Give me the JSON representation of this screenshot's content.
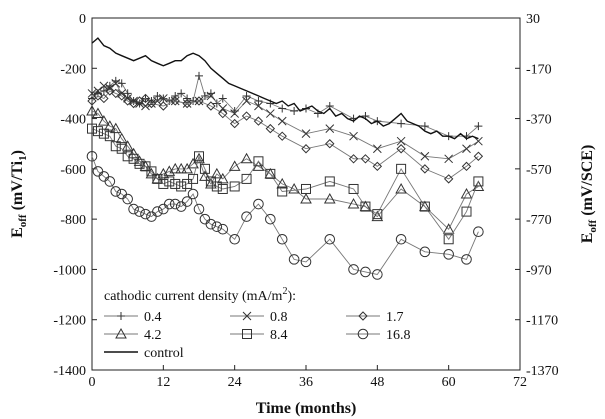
{
  "chart_data": {
    "type": "line",
    "xlabel": "Time (months)",
    "ylabel_left": "E_off (mV/Ti_1)",
    "ylabel_right": "E_off (mV/SCE)",
    "xlim": [
      0,
      72
    ],
    "ylim_left": [
      -1400,
      0
    ],
    "ylim_right": [
      -1370,
      30
    ],
    "x_ticks": [
      "0",
      "12",
      "24",
      "36",
      "48",
      "60",
      "72"
    ],
    "y_ticks_left": [
      "0",
      "-200",
      "-400",
      "-600",
      "-800",
      "-1000",
      "-1200",
      "-1400"
    ],
    "y_ticks_right": [
      "30",
      "-170",
      "-370",
      "-570",
      "-770",
      "-970",
      "-1170",
      "-1370"
    ],
    "legend_title": "cathodic current density (mA/m²):",
    "legend_position": "bottom-left",
    "grid": false,
    "series": [
      {
        "name": "0.4",
        "marker": "plus",
        "points": [
          [
            0,
            -320
          ],
          [
            1,
            -300
          ],
          [
            2,
            -290
          ],
          [
            3,
            -270
          ],
          [
            4,
            -250
          ],
          [
            5,
            -260
          ],
          [
            6,
            -300
          ],
          [
            7,
            -330
          ],
          [
            8,
            -340
          ],
          [
            9,
            -320
          ],
          [
            10,
            -330
          ],
          [
            11,
            -310
          ],
          [
            12,
            -320
          ],
          [
            13,
            -330
          ],
          [
            14,
            -310
          ],
          [
            15,
            -300
          ],
          [
            16,
            -320
          ],
          [
            17,
            -330
          ],
          [
            18,
            -230
          ],
          [
            19,
            -310
          ],
          [
            20,
            -300
          ],
          [
            21,
            -340
          ],
          [
            22,
            -320
          ],
          [
            24,
            -370
          ],
          [
            26,
            -310
          ],
          [
            28,
            -330
          ],
          [
            30,
            -340
          ],
          [
            32,
            -360
          ],
          [
            34,
            -370
          ],
          [
            36,
            -360
          ],
          [
            38,
            -380
          ],
          [
            40,
            -350
          ],
          [
            44,
            -400
          ],
          [
            46,
            -390
          ],
          [
            48,
            -410
          ],
          [
            52,
            -420
          ],
          [
            56,
            -430
          ],
          [
            60,
            -470
          ],
          [
            63,
            -470
          ],
          [
            65,
            -430
          ]
        ]
      },
      {
        "name": "0.8",
        "marker": "x",
        "points": [
          [
            0,
            -300
          ],
          [
            1,
            -290
          ],
          [
            2,
            -270
          ],
          [
            3,
            -280
          ],
          [
            4,
            -260
          ],
          [
            5,
            -300
          ],
          [
            6,
            -320
          ],
          [
            7,
            -330
          ],
          [
            8,
            -340
          ],
          [
            9,
            -350
          ],
          [
            10,
            -340
          ],
          [
            11,
            -330
          ],
          [
            12,
            -320
          ],
          [
            14,
            -330
          ],
          [
            16,
            -340
          ],
          [
            18,
            -330
          ],
          [
            20,
            -310
          ],
          [
            22,
            -360
          ],
          [
            24,
            -380
          ],
          [
            26,
            -330
          ],
          [
            28,
            -350
          ],
          [
            30,
            -380
          ],
          [
            32,
            -410
          ],
          [
            36,
            -460
          ],
          [
            40,
            -440
          ],
          [
            44,
            -470
          ],
          [
            48,
            -520
          ],
          [
            52,
            -490
          ],
          [
            56,
            -550
          ],
          [
            60,
            -560
          ],
          [
            63,
            -520
          ],
          [
            65,
            -490
          ]
        ]
      },
      {
        "name": "1.7",
        "marker": "diamond",
        "points": [
          [
            0,
            -330
          ],
          [
            1,
            -310
          ],
          [
            2,
            -320
          ],
          [
            3,
            -290
          ],
          [
            4,
            -300
          ],
          [
            5,
            -310
          ],
          [
            6,
            -330
          ],
          [
            7,
            -340
          ],
          [
            8,
            -330
          ],
          [
            9,
            -320
          ],
          [
            10,
            -340
          ],
          [
            12,
            -350
          ],
          [
            14,
            -330
          ],
          [
            16,
            -340
          ],
          [
            18,
            -330
          ],
          [
            20,
            -350
          ],
          [
            22,
            -380
          ],
          [
            24,
            -420
          ],
          [
            26,
            -390
          ],
          [
            28,
            -410
          ],
          [
            30,
            -440
          ],
          [
            32,
            -470
          ],
          [
            36,
            -520
          ],
          [
            40,
            -500
          ],
          [
            44,
            -560
          ],
          [
            46,
            -560
          ],
          [
            48,
            -590
          ],
          [
            52,
            -520
          ],
          [
            56,
            -600
          ],
          [
            60,
            -640
          ],
          [
            63,
            -590
          ],
          [
            65,
            -550
          ]
        ]
      },
      {
        "name": "4.2",
        "marker": "triangle",
        "points": [
          [
            0,
            -370
          ],
          [
            1,
            -380
          ],
          [
            2,
            -410
          ],
          [
            3,
            -430
          ],
          [
            4,
            -440
          ],
          [
            5,
            -480
          ],
          [
            6,
            -510
          ],
          [
            7,
            -540
          ],
          [
            8,
            -570
          ],
          [
            9,
            -590
          ],
          [
            10,
            -620
          ],
          [
            11,
            -640
          ],
          [
            12,
            -620
          ],
          [
            13,
            -610
          ],
          [
            14,
            -600
          ],
          [
            15,
            -600
          ],
          [
            16,
            -600
          ],
          [
            17,
            -580
          ],
          [
            18,
            -560
          ],
          [
            19,
            -630
          ],
          [
            20,
            -660
          ],
          [
            21,
            -620
          ],
          [
            22,
            -640
          ],
          [
            24,
            -590
          ],
          [
            26,
            -560
          ],
          [
            28,
            -590
          ],
          [
            30,
            -620
          ],
          [
            32,
            -660
          ],
          [
            34,
            -680
          ],
          [
            36,
            -720
          ],
          [
            40,
            -720
          ],
          [
            44,
            -740
          ],
          [
            46,
            -750
          ],
          [
            48,
            -790
          ],
          [
            52,
            -680
          ],
          [
            56,
            -750
          ],
          [
            60,
            -840
          ],
          [
            63,
            -700
          ],
          [
            65,
            -670
          ]
        ]
      },
      {
        "name": "8.4",
        "marker": "square",
        "points": [
          [
            0,
            -440
          ],
          [
            1,
            -450
          ],
          [
            2,
            -460
          ],
          [
            3,
            -470
          ],
          [
            4,
            -510
          ],
          [
            5,
            -520
          ],
          [
            6,
            -550
          ],
          [
            7,
            -560
          ],
          [
            8,
            -580
          ],
          [
            9,
            -590
          ],
          [
            10,
            -610
          ],
          [
            11,
            -640
          ],
          [
            12,
            -660
          ],
          [
            13,
            -650
          ],
          [
            14,
            -660
          ],
          [
            15,
            -670
          ],
          [
            16,
            -660
          ],
          [
            17,
            -640
          ],
          [
            18,
            -550
          ],
          [
            19,
            -600
          ],
          [
            20,
            -650
          ],
          [
            21,
            -670
          ],
          [
            22,
            -680
          ],
          [
            24,
            -670
          ],
          [
            26,
            -640
          ],
          [
            28,
            -570
          ],
          [
            30,
            -620
          ],
          [
            32,
            -690
          ],
          [
            36,
            -680
          ],
          [
            40,
            -650
          ],
          [
            44,
            -680
          ],
          [
            46,
            -750
          ],
          [
            48,
            -780
          ],
          [
            52,
            -600
          ],
          [
            56,
            -750
          ],
          [
            60,
            -880
          ],
          [
            63,
            -770
          ],
          [
            65,
            -650
          ]
        ]
      },
      {
        "name": "16.8",
        "marker": "circle",
        "points": [
          [
            0,
            -550
          ],
          [
            1,
            -610
          ],
          [
            2,
            -630
          ],
          [
            3,
            -650
          ],
          [
            4,
            -690
          ],
          [
            5,
            -700
          ],
          [
            6,
            -720
          ],
          [
            7,
            -760
          ],
          [
            8,
            -770
          ],
          [
            9,
            -780
          ],
          [
            10,
            -790
          ],
          [
            11,
            -770
          ],
          [
            12,
            -760
          ],
          [
            13,
            -740
          ],
          [
            14,
            -740
          ],
          [
            15,
            -750
          ],
          [
            16,
            -730
          ],
          [
            17,
            -700
          ],
          [
            18,
            -760
          ],
          [
            19,
            -800
          ],
          [
            20,
            -820
          ],
          [
            21,
            -830
          ],
          [
            22,
            -840
          ],
          [
            24,
            -880
          ],
          [
            26,
            -790
          ],
          [
            28,
            -740
          ],
          [
            30,
            -800
          ],
          [
            32,
            -880
          ],
          [
            34,
            -960
          ],
          [
            36,
            -970
          ],
          [
            40,
            -880
          ],
          [
            44,
            -1000
          ],
          [
            46,
            -1010
          ],
          [
            48,
            -1020
          ],
          [
            52,
            -880
          ],
          [
            56,
            -930
          ],
          [
            60,
            -940
          ],
          [
            63,
            -960
          ],
          [
            65,
            -850
          ]
        ]
      },
      {
        "name": "control",
        "marker": "none",
        "points": [
          [
            0,
            -100
          ],
          [
            1,
            -80
          ],
          [
            2,
            -110
          ],
          [
            3,
            -120
          ],
          [
            4,
            -140
          ],
          [
            5,
            -150
          ],
          [
            6,
            -160
          ],
          [
            7,
            -170
          ],
          [
            8,
            -160
          ],
          [
            9,
            -150
          ],
          [
            10,
            -170
          ],
          [
            11,
            -180
          ],
          [
            12,
            -190
          ],
          [
            13,
            -180
          ],
          [
            14,
            -170
          ],
          [
            15,
            -170
          ],
          [
            16,
            -150
          ],
          [
            17,
            -140
          ],
          [
            18,
            -150
          ],
          [
            19,
            -170
          ],
          [
            20,
            -200
          ],
          [
            21,
            -220
          ],
          [
            22,
            -240
          ],
          [
            23,
            -260
          ],
          [
            24,
            -270
          ],
          [
            25,
            -280
          ],
          [
            26,
            -290
          ],
          [
            27,
            -300
          ],
          [
            28,
            -310
          ],
          [
            29,
            -320
          ],
          [
            30,
            -330
          ],
          [
            31,
            -340
          ],
          [
            32,
            -330
          ],
          [
            33,
            -350
          ],
          [
            34,
            -340
          ],
          [
            35,
            -370
          ],
          [
            36,
            -360
          ],
          [
            37,
            -350
          ],
          [
            38,
            -370
          ],
          [
            39,
            -380
          ],
          [
            40,
            -360
          ],
          [
            41,
            -390
          ],
          [
            42,
            -380
          ],
          [
            43,
            -400
          ],
          [
            44,
            -410
          ],
          [
            45,
            -390
          ],
          [
            46,
            -400
          ],
          [
            47,
            -420
          ],
          [
            48,
            -410
          ],
          [
            49,
            -430
          ],
          [
            50,
            -420
          ],
          [
            51,
            -400
          ],
          [
            52,
            -380
          ],
          [
            53,
            -410
          ],
          [
            54,
            -420
          ],
          [
            55,
            -430
          ],
          [
            56,
            -450
          ],
          [
            57,
            -460
          ],
          [
            58,
            -450
          ],
          [
            59,
            -470
          ],
          [
            60,
            -470
          ],
          [
            61,
            -480
          ],
          [
            62,
            -460
          ],
          [
            63,
            -480
          ],
          [
            64,
            -470
          ],
          [
            65,
            -480
          ]
        ]
      }
    ]
  }
}
